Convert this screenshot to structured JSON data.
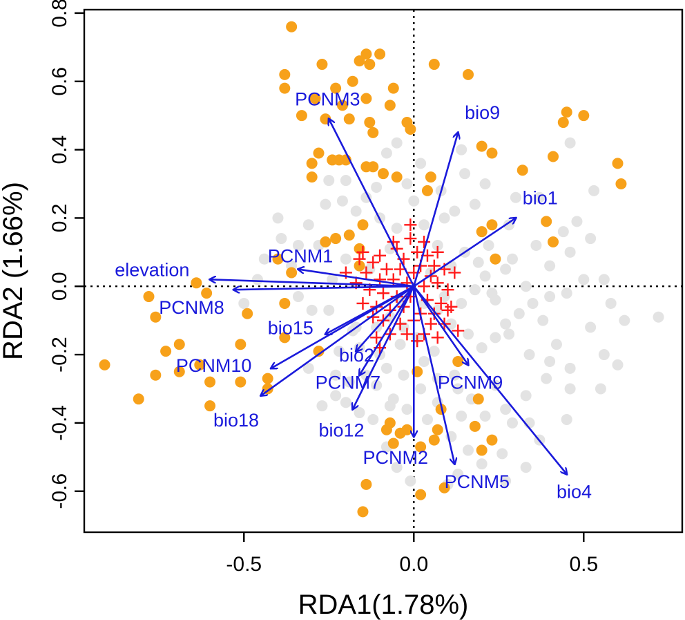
{
  "chart_data": {
    "type": "scatter",
    "xlabel": "RDA1(1.78%)",
    "ylabel": "RDA2 (1.66%)",
    "xlim": [
      -0.97,
      0.79
    ],
    "ylim": [
      -0.72,
      0.81
    ],
    "xticks": [
      {
        "value": -0.5,
        "label": "-0.5"
      },
      {
        "value": 0.0,
        "label": "0.0"
      },
      {
        "value": 0.5,
        "label": "0.5"
      }
    ],
    "yticks": [
      {
        "value": -0.6,
        "label": "-0.6"
      },
      {
        "value": -0.4,
        "label": "-0.4"
      },
      {
        "value": -0.2,
        "label": "-0.2"
      },
      {
        "value": 0.0,
        "label": "0.0"
      },
      {
        "value": 0.2,
        "label": "0.2"
      },
      {
        "value": 0.4,
        "label": "0.4"
      },
      {
        "value": 0.6,
        "label": "0.6"
      },
      {
        "value": 0.8,
        "label": "0.8"
      }
    ],
    "reference_lines": {
      "x": 0,
      "y": 0,
      "style": "dotted"
    },
    "colors": {
      "background_points": "#e3e3e3",
      "highlight_points": "#f7a11a",
      "cross_points": "#ff1a1a",
      "vectors": "#1a1adb"
    },
    "vectors": [
      {
        "name": "PCNM3",
        "x": -0.25,
        "y": 0.49,
        "lx": -0.35,
        "ly": 0.53
      },
      {
        "name": "bio9",
        "x": 0.13,
        "y": 0.45,
        "lx": 0.15,
        "ly": 0.49
      },
      {
        "name": "bio1",
        "x": 0.3,
        "y": 0.2,
        "lx": 0.32,
        "ly": 0.24
      },
      {
        "name": "PCNM1",
        "x": -0.34,
        "y": 0.05,
        "lx": -0.43,
        "ly": 0.07
      },
      {
        "name": "elevation",
        "x": -0.6,
        "y": 0.02,
        "lx": -0.88,
        "ly": 0.03
      },
      {
        "name": "PCNM8",
        "x": -0.53,
        "y": -0.01,
        "lx": -0.75,
        "ly": -0.08
      },
      {
        "name": "bio15",
        "x": -0.26,
        "y": -0.14,
        "lx": -0.43,
        "ly": -0.14
      },
      {
        "name": "bio2",
        "x": -0.17,
        "y": -0.19,
        "lx": -0.22,
        "ly": -0.22
      },
      {
        "name": "PCNM10",
        "x": -0.42,
        "y": -0.24,
        "lx": -0.7,
        "ly": -0.25
      },
      {
        "name": "PCNM7",
        "x": -0.16,
        "y": -0.26,
        "lx": -0.29,
        "ly": -0.3
      },
      {
        "name": "PCNM9",
        "x": 0.16,
        "y": -0.23,
        "lx": 0.07,
        "ly": -0.3
      },
      {
        "name": "bio18",
        "x": -0.45,
        "y": -0.32,
        "lx": -0.59,
        "ly": -0.41
      },
      {
        "name": "bio12",
        "x": -0.18,
        "y": -0.36,
        "lx": -0.28,
        "ly": -0.44
      },
      {
        "name": "PCNM2",
        "x": 0.0,
        "y": -0.44,
        "lx": -0.15,
        "ly": -0.52
      },
      {
        "name": "PCNM5",
        "x": 0.12,
        "y": -0.52,
        "lx": 0.09,
        "ly": -0.59
      },
      {
        "name": "bio4",
        "x": 0.45,
        "y": -0.55,
        "lx": 0.42,
        "ly": -0.62
      }
    ],
    "highlight_points": [
      [
        -0.36,
        0.76
      ],
      [
        -0.14,
        0.68
      ],
      [
        -0.1,
        0.68
      ],
      [
        -0.16,
        0.66
      ],
      [
        -0.13,
        0.65
      ],
      [
        0.06,
        0.65
      ],
      [
        -0.27,
        0.65
      ],
      [
        0.16,
        0.62
      ],
      [
        -0.38,
        0.62
      ],
      [
        -0.18,
        0.6
      ],
      [
        -0.06,
        0.58
      ],
      [
        -0.38,
        0.58
      ],
      [
        -0.23,
        0.58
      ],
      [
        -0.14,
        0.55
      ],
      [
        -0.29,
        0.55
      ],
      [
        -0.21,
        0.53
      ],
      [
        -0.07,
        0.53
      ],
      [
        -0.33,
        0.5
      ],
      [
        -0.26,
        0.49
      ],
      [
        -0.19,
        0.49
      ],
      [
        -0.13,
        0.48
      ],
      [
        -0.02,
        0.48
      ],
      [
        -0.12,
        0.45
      ],
      [
        -0.01,
        0.46
      ],
      [
        0.2,
        0.41
      ],
      [
        -0.28,
        0.39
      ],
      [
        0.23,
        0.39
      ],
      [
        -0.2,
        0.37
      ],
      [
        -0.22,
        0.37
      ],
      [
        -0.24,
        0.37
      ],
      [
        -0.14,
        0.35
      ],
      [
        -0.12,
        0.35
      ],
      [
        -0.3,
        0.36
      ],
      [
        -0.09,
        0.33
      ],
      [
        0.32,
        0.34
      ],
      [
        -0.3,
        0.32
      ],
      [
        0.05,
        0.32
      ],
      [
        -0.05,
        0.32
      ],
      [
        0.04,
        0.28
      ],
      [
        0.45,
        0.51
      ],
      [
        0.5,
        0.5
      ],
      [
        0.44,
        0.48
      ],
      [
        0.6,
        0.36
      ],
      [
        0.61,
        0.3
      ],
      [
        0.41,
        0.38
      ],
      [
        0.39,
        0.19
      ],
      [
        0.23,
        0.18
      ],
      [
        0.2,
        0.16
      ],
      [
        0.41,
        0.13
      ],
      [
        -0.15,
        0.18
      ],
      [
        -0.19,
        0.15
      ],
      [
        -0.23,
        0.14
      ],
      [
        -0.26,
        0.13
      ],
      [
        -0.16,
        0.11
      ],
      [
        -0.16,
        0.06
      ],
      [
        -0.4,
        0.08
      ],
      [
        0.24,
        0.08
      ],
      [
        -0.36,
        0.04
      ],
      [
        -0.64,
        0.01
      ],
      [
        -0.61,
        -0.02
      ],
      [
        -0.78,
        -0.03
      ],
      [
        -0.49,
        -0.08
      ],
      [
        -0.76,
        -0.09
      ],
      [
        -0.38,
        -0.05
      ],
      [
        -0.38,
        -0.15
      ],
      [
        -0.28,
        -0.19
      ],
      [
        -0.51,
        -0.17
      ],
      [
        -0.69,
        -0.17
      ],
      [
        -0.73,
        -0.19
      ],
      [
        -0.76,
        -0.26
      ],
      [
        -0.63,
        -0.23
      ],
      [
        -0.69,
        -0.25
      ],
      [
        -0.43,
        -0.27
      ],
      [
        -0.51,
        -0.28
      ],
      [
        -0.6,
        -0.28
      ],
      [
        -0.43,
        -0.3
      ],
      [
        -0.91,
        -0.23
      ],
      [
        -0.81,
        -0.33
      ],
      [
        -0.6,
        -0.35
      ],
      [
        0.13,
        -0.22
      ],
      [
        0.01,
        -0.25
      ],
      [
        0.19,
        -0.33
      ],
      [
        0.18,
        -0.41
      ],
      [
        0.07,
        -0.42
      ],
      [
        0.06,
        -0.45
      ],
      [
        0.23,
        -0.45
      ],
      [
        -0.07,
        -0.4
      ],
      [
        -0.02,
        -0.42
      ],
      [
        -0.04,
        -0.43
      ],
      [
        -0.08,
        -0.42
      ],
      [
        -0.06,
        -0.46
      ],
      [
        0.02,
        -0.47
      ],
      [
        0.09,
        -0.59
      ],
      [
        0.02,
        -0.61
      ],
      [
        -0.14,
        -0.58
      ],
      [
        -0.15,
        -0.66
      ],
      [
        0.08,
        -0.36
      ],
      [
        0.2,
        -0.48
      ]
    ],
    "background_points": [
      [
        -0.05,
        0.42
      ],
      [
        0.14,
        0.4
      ],
      [
        0.02,
        0.36
      ],
      [
        -0.25,
        0.31
      ],
      [
        -0.2,
        0.31
      ],
      [
        -0.11,
        0.29
      ],
      [
        -0.02,
        0.3
      ],
      [
        0.0,
        0.25
      ],
      [
        0.08,
        0.28
      ],
      [
        0.15,
        0.33
      ],
      [
        0.21,
        0.3
      ],
      [
        0.28,
        0.18
      ],
      [
        0.29,
        0.08
      ],
      [
        0.36,
        0.12
      ],
      [
        0.44,
        0.16
      ],
      [
        0.46,
        0.1
      ],
      [
        0.56,
        0.02
      ],
      [
        0.5,
        0.02
      ],
      [
        0.45,
        -0.02
      ],
      [
        0.4,
        -0.03
      ],
      [
        0.35,
        -0.05
      ],
      [
        0.31,
        -0.08
      ],
      [
        0.27,
        -0.11
      ],
      [
        0.24,
        -0.15
      ],
      [
        0.2,
        -0.18
      ],
      [
        0.16,
        -0.14
      ],
      [
        0.11,
        -0.11
      ],
      [
        0.07,
        -0.07
      ],
      [
        0.03,
        -0.05
      ],
      [
        -0.04,
        -0.04
      ],
      [
        -0.07,
        -0.09
      ],
      [
        -0.11,
        -0.12
      ],
      [
        -0.17,
        -0.12
      ],
      [
        -0.25,
        -0.07
      ],
      [
        -0.3,
        -0.07
      ],
      [
        -0.34,
        -0.03
      ],
      [
        -0.39,
        0.14
      ],
      [
        -0.44,
        0.08
      ],
      [
        -0.31,
        0.18
      ],
      [
        -0.26,
        0.24
      ],
      [
        -0.21,
        0.25
      ],
      [
        -0.17,
        0.22
      ],
      [
        -0.1,
        0.2
      ],
      [
        -0.05,
        0.17
      ],
      [
        0.12,
        0.22
      ],
      [
        0.18,
        0.24
      ],
      [
        0.22,
        0.12
      ],
      [
        0.27,
        0.05
      ],
      [
        0.33,
        0.0
      ],
      [
        0.38,
        -0.1
      ],
      [
        0.42,
        -0.17
      ],
      [
        0.46,
        -0.24
      ],
      [
        0.39,
        -0.27
      ],
      [
        0.33,
        -0.32
      ],
      [
        0.27,
        -0.36
      ],
      [
        0.21,
        -0.38
      ],
      [
        0.14,
        -0.38
      ],
      [
        0.07,
        -0.34
      ],
      [
        0.02,
        -0.3
      ],
      [
        -0.03,
        -0.26
      ],
      [
        -0.08,
        -0.24
      ],
      [
        -0.14,
        -0.26
      ],
      [
        -0.19,
        -0.28
      ],
      [
        -0.23,
        -0.32
      ],
      [
        -0.27,
        -0.35
      ],
      [
        -0.22,
        -0.19
      ],
      [
        -0.18,
        -0.13
      ],
      [
        -0.11,
        -0.29
      ],
      [
        -0.06,
        -0.33
      ],
      [
        -0.02,
        -0.36
      ],
      [
        0.04,
        -0.39
      ],
      [
        0.11,
        -0.44
      ],
      [
        0.16,
        -0.48
      ],
      [
        0.12,
        -0.26
      ],
      [
        0.06,
        -0.19
      ],
      [
        0.01,
        -0.15
      ],
      [
        -0.04,
        -0.17
      ],
      [
        -0.1,
        -0.2
      ],
      [
        0.09,
        -0.03
      ],
      [
        0.14,
        -0.05
      ],
      [
        0.18,
        -0.01
      ],
      [
        0.21,
        0.03
      ],
      [
        0.24,
        -0.04
      ],
      [
        0.28,
        -0.14
      ],
      [
        0.34,
        -0.2
      ],
      [
        0.4,
        -0.22
      ],
      [
        0.46,
        -0.3
      ],
      [
        0.52,
        -0.12
      ],
      [
        0.56,
        -0.2
      ],
      [
        0.58,
        -0.05
      ],
      [
        0.62,
        -0.1
      ],
      [
        0.72,
        -0.09
      ],
      [
        0.48,
        0.19
      ],
      [
        0.52,
        0.14
      ],
      [
        0.53,
        0.28
      ],
      [
        0.46,
        0.42
      ],
      [
        0.15,
        0.1
      ],
      [
        0.11,
        0.06
      ],
      [
        0.07,
        0.12
      ],
      [
        0.03,
        0.18
      ],
      [
        -0.07,
        0.11
      ],
      [
        -0.13,
        0.05
      ],
      [
        -0.2,
        0.08
      ],
      [
        -0.24,
        0.02
      ],
      [
        -0.28,
        0.12
      ],
      [
        -0.34,
        0.12
      ],
      [
        -0.4,
        0.2
      ],
      [
        -0.46,
        0.02
      ],
      [
        -0.5,
        -0.05
      ],
      [
        -0.31,
        -0.24
      ],
      [
        -0.2,
        -0.34
      ],
      [
        -0.16,
        -0.37
      ],
      [
        -0.12,
        -0.39
      ],
      [
        -0.07,
        -0.35
      ],
      [
        -0.03,
        -0.12
      ],
      [
        0.03,
        -0.22
      ],
      [
        0.07,
        -0.27
      ],
      [
        0.13,
        -0.3
      ],
      [
        0.17,
        -0.33
      ],
      [
        0.24,
        -0.29
      ],
      [
        0.29,
        -0.4
      ],
      [
        0.34,
        -0.4
      ],
      [
        0.26,
        -0.49
      ],
      [
        0.13,
        -0.55
      ],
      [
        -0.05,
        -0.53
      ],
      [
        -0.01,
        -0.57
      ],
      [
        0.1,
        -0.58
      ],
      [
        -0.08,
        -0.47
      ],
      [
        0.23,
        -0.02
      ],
      [
        0.3,
        0.26
      ],
      [
        0.37,
        0.26
      ],
      [
        0.4,
        0.06
      ],
      [
        -0.08,
        0.39
      ],
      [
        0.19,
        0.07
      ],
      [
        -0.14,
        0.26
      ],
      [
        -0.16,
        -0.18
      ],
      [
        -0.23,
        -0.26
      ],
      [
        -0.36,
        0.06
      ],
      [
        0.05,
        0.04
      ],
      [
        0.09,
        0.2
      ],
      [
        0.45,
        -0.39
      ],
      [
        0.37,
        -0.45
      ],
      [
        0.33,
        -0.53
      ],
      [
        0.27,
        -0.57
      ],
      [
        0.2,
        -0.52
      ],
      [
        0.55,
        -0.3
      ],
      [
        0.6,
        -0.23
      ]
    ],
    "cross_points": [
      [
        -0.06,
        0.13
      ],
      [
        -0.01,
        0.14
      ],
      [
        0.03,
        0.13
      ],
      [
        -0.05,
        0.11
      ],
      [
        0.01,
        0.1
      ],
      [
        0.04,
        0.09
      ],
      [
        0.07,
        0.1
      ],
      [
        -0.1,
        0.09
      ],
      [
        -0.03,
        0.08
      ],
      [
        0.02,
        0.06
      ],
      [
        0.06,
        0.06
      ],
      [
        -0.12,
        0.07
      ],
      [
        -0.08,
        0.05
      ],
      [
        -0.04,
        0.05
      ],
      [
        0.0,
        0.04
      ],
      [
        0.05,
        0.03
      ],
      [
        0.09,
        0.05
      ],
      [
        -0.14,
        0.04
      ],
      [
        -0.1,
        0.02
      ],
      [
        -0.06,
        0.02
      ],
      [
        -0.02,
        0.01
      ],
      [
        0.03,
        0.0
      ],
      [
        0.07,
        0.01
      ],
      [
        0.1,
        -0.01
      ],
      [
        -0.17,
        0.01
      ],
      [
        -0.13,
        -0.01
      ],
      [
        -0.09,
        -0.02
      ],
      [
        -0.05,
        -0.03
      ],
      [
        -0.01,
        -0.03
      ],
      [
        0.04,
        -0.04
      ],
      [
        0.08,
        -0.05
      ],
      [
        -0.15,
        -0.05
      ],
      [
        -0.11,
        -0.06
      ],
      [
        -0.07,
        -0.07
      ],
      [
        -0.03,
        -0.06
      ],
      [
        0.02,
        -0.08
      ],
      [
        0.06,
        -0.08
      ],
      [
        0.1,
        -0.07
      ],
      [
        -0.09,
        -0.1
      ],
      [
        -0.04,
        -0.11
      ],
      [
        0.0,
        -0.1
      ],
      [
        0.05,
        -0.11
      ],
      [
        0.09,
        -0.11
      ],
      [
        -0.02,
        -0.14
      ],
      [
        0.03,
        -0.14
      ],
      [
        -0.07,
        -0.14
      ],
      [
        -0.12,
        -0.09
      ],
      [
        -0.15,
        0.1
      ],
      [
        -0.01,
        0.18
      ],
      [
        -0.11,
        -0.15
      ],
      [
        0.11,
        -0.06
      ],
      [
        0.12,
        0.04
      ],
      [
        -0.2,
        0.04
      ],
      [
        -0.16,
        0.08
      ],
      [
        0.01,
        -0.16
      ],
      [
        0.07,
        -0.15
      ],
      [
        0.13,
        -0.13
      ],
      [
        -0.1,
        -0.18
      ]
    ]
  }
}
